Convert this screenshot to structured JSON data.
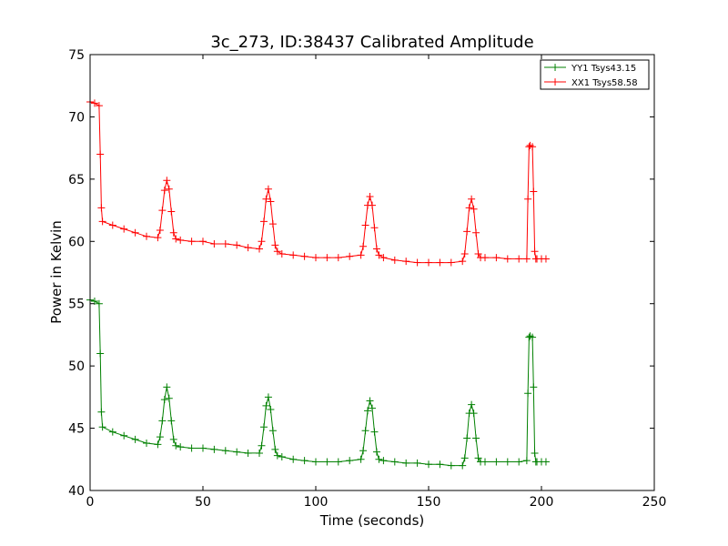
{
  "chart_data": {
    "type": "line",
    "title": "3c_273, ID:38437 Calibrated Amplitude",
    "xlabel": "Time (seconds)",
    "ylabel": "Power in Kelvin",
    "xlim": [
      0,
      250
    ],
    "ylim": [
      40,
      75
    ],
    "xticks": [
      "0",
      "50",
      "100",
      "150",
      "200",
      "250"
    ],
    "yticks": [
      "40",
      "45",
      "50",
      "55",
      "60",
      "65",
      "70",
      "75"
    ],
    "grid": false,
    "legend_position": "top-right",
    "marker": "+",
    "series": [
      {
        "name": "YY1 Tsys43.15",
        "color": "#008000",
        "x": [
          0,
          2,
          4,
          4.5,
          5,
          5.5,
          10,
          15,
          20,
          25,
          30,
          31,
          32,
          33,
          34,
          35,
          36,
          37,
          38,
          40,
          45,
          50,
          55,
          60,
          65,
          70,
          75,
          76,
          77,
          78,
          79,
          80,
          81,
          82,
          83,
          85,
          90,
          95,
          100,
          105,
          110,
          115,
          120,
          121,
          122,
          123,
          124,
          125,
          126,
          127,
          128,
          130,
          135,
          140,
          145,
          150,
          155,
          160,
          165,
          166,
          167,
          168,
          169,
          170,
          171,
          172,
          173,
          175,
          180,
          185,
          190,
          193.5,
          194,
          194.5,
          195,
          196,
          196.5,
          197,
          197.5,
          198,
          200,
          202
        ],
        "values": [
          55.3,
          55.2,
          55.0,
          51.0,
          46.3,
          45.1,
          44.7,
          44.4,
          44.1,
          43.8,
          43.7,
          44.3,
          45.6,
          47.3,
          48.3,
          47.4,
          45.6,
          44.1,
          43.6,
          43.5,
          43.4,
          43.4,
          43.3,
          43.2,
          43.1,
          43.0,
          43.0,
          43.6,
          45.1,
          46.8,
          47.5,
          46.5,
          44.8,
          43.3,
          42.8,
          42.7,
          42.5,
          42.4,
          42.3,
          42.3,
          42.3,
          42.4,
          42.5,
          43.2,
          44.8,
          46.4,
          47.2,
          46.6,
          44.7,
          43.1,
          42.5,
          42.4,
          42.3,
          42.2,
          42.2,
          42.1,
          42.1,
          42.0,
          42.0,
          42.6,
          44.2,
          46.2,
          46.9,
          46.2,
          44.2,
          42.6,
          42.3,
          42.3,
          42.3,
          42.3,
          42.3,
          42.4,
          47.8,
          52.3,
          52.4,
          52.3,
          48.3,
          43.0,
          42.3,
          42.3,
          42.3,
          42.3
        ]
      },
      {
        "name": "XX1 Tsys58.58",
        "color": "#ff0000",
        "x": [
          0,
          2,
          4,
          4.5,
          5,
          5.5,
          10,
          15,
          20,
          25,
          30,
          31,
          32,
          33,
          34,
          35,
          36,
          37,
          38,
          40,
          45,
          50,
          55,
          60,
          65,
          70,
          75,
          76,
          77,
          78,
          79,
          80,
          81,
          82,
          83,
          85,
          90,
          95,
          100,
          105,
          110,
          115,
          120,
          121,
          122,
          123,
          124,
          125,
          126,
          127,
          128,
          130,
          135,
          140,
          145,
          150,
          155,
          160,
          165,
          166,
          167,
          168,
          169,
          170,
          171,
          172,
          173,
          175,
          180,
          185,
          190,
          193.5,
          194,
          194.5,
          195,
          196,
          196.5,
          197,
          197.5,
          198,
          200,
          202
        ],
        "values": [
          71.2,
          71.1,
          70.9,
          67.0,
          62.7,
          61.6,
          61.3,
          61.0,
          60.7,
          60.4,
          60.3,
          60.9,
          62.5,
          64.1,
          64.9,
          64.2,
          62.4,
          60.7,
          60.2,
          60.1,
          60.0,
          60.0,
          59.8,
          59.8,
          59.7,
          59.5,
          59.4,
          60.0,
          61.6,
          63.4,
          64.2,
          63.2,
          61.4,
          59.7,
          59.2,
          59.0,
          58.9,
          58.8,
          58.7,
          58.7,
          58.7,
          58.8,
          58.9,
          59.6,
          61.3,
          62.9,
          63.6,
          62.9,
          61.1,
          59.4,
          58.9,
          58.7,
          58.5,
          58.4,
          58.3,
          58.3,
          58.3,
          58.3,
          58.4,
          59.0,
          60.8,
          62.7,
          63.4,
          62.6,
          60.7,
          59.0,
          58.7,
          58.7,
          58.7,
          58.6,
          58.6,
          58.6,
          63.4,
          67.6,
          67.7,
          67.6,
          64.0,
          59.2,
          58.6,
          58.6,
          58.6,
          58.6
        ]
      }
    ]
  }
}
